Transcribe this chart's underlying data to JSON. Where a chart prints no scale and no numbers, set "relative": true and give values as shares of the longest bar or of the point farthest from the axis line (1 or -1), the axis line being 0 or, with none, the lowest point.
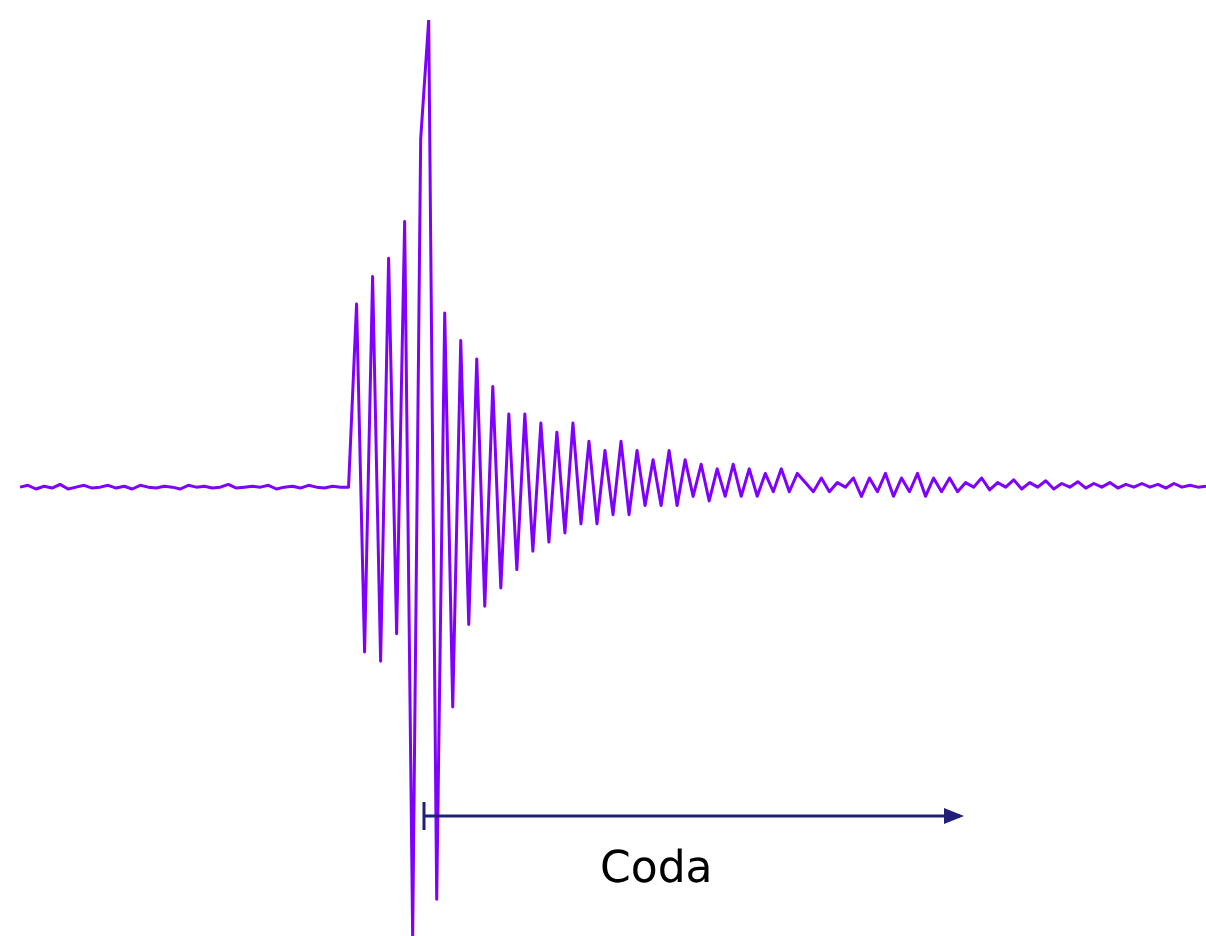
{
  "chart_data": {
    "type": "line",
    "relative": true,
    "marker": "none",
    "grid": false,
    "legend": false,
    "annotations": [
      "Coda"
    ],
    "categories": [
      null,
      null,
      null,
      null,
      null,
      null,
      null,
      null,
      null,
      null,
      null,
      null,
      null,
      null,
      null,
      null,
      null,
      null,
      null,
      null,
      null,
      null,
      null,
      null,
      null,
      null,
      null,
      null,
      null,
      null,
      null,
      null,
      null,
      null,
      null,
      null,
      null,
      null,
      null,
      null,
      null,
      null,
      null,
      null,
      null,
      null,
      null,
      null,
      null,
      null,
      null,
      null,
      null,
      null,
      null,
      null,
      null,
      null,
      null,
      null,
      null,
      null,
      null,
      null,
      null,
      null,
      null,
      null,
      null,
      null,
      null,
      null,
      null,
      null,
      null,
      null,
      null,
      null,
      null,
      null,
      null,
      null,
      null,
      null,
      null,
      null,
      null,
      null,
      null,
      null,
      null,
      null,
      null,
      null,
      null,
      null,
      null,
      null,
      null,
      null,
      null,
      null,
      null,
      null,
      null,
      null,
      null,
      null,
      null,
      null,
      null,
      null,
      null,
      null,
      null,
      null,
      null,
      null,
      null,
      null,
      null,
      null,
      null,
      null,
      null,
      null,
      null,
      null,
      null,
      null,
      null,
      null,
      null,
      null,
      null,
      null,
      null,
      null,
      null,
      null,
      null,
      null,
      null,
      null,
      null,
      null,
      null,
      null,
      null
    ],
    "series": [
      {
        "color": "#7f00ff",
        "values": [
          0.49,
          0.492,
          0.488,
          0.491,
          0.489,
          0.493,
          0.488,
          0.49,
          0.492,
          0.489,
          0.49,
          0.492,
          0.489,
          0.491,
          0.488,
          0.492,
          0.49,
          0.489,
          0.491,
          0.49,
          0.488,
          0.492,
          0.49,
          0.491,
          0.489,
          0.49,
          0.493,
          0.489,
          0.49,
          0.491,
          0.49,
          0.492,
          0.488,
          0.49,
          0.491,
          0.489,
          0.492,
          0.49,
          0.489,
          0.491,
          0.49,
          0.49,
          0.69,
          0.31,
          0.72,
          0.3,
          0.74,
          0.33,
          0.78,
          0.0,
          0.87,
          1.0,
          0.04,
          0.68,
          0.25,
          0.65,
          0.34,
          0.63,
          0.36,
          0.6,
          0.38,
          0.57,
          0.4,
          0.57,
          0.42,
          0.56,
          0.43,
          0.55,
          0.44,
          0.56,
          0.45,
          0.54,
          0.45,
          0.53,
          0.46,
          0.54,
          0.46,
          0.53,
          0.47,
          0.52,
          0.47,
          0.53,
          0.47,
          0.52,
          0.48,
          0.515,
          0.475,
          0.51,
          0.48,
          0.515,
          0.48,
          0.51,
          0.48,
          0.505,
          0.485,
          0.51,
          0.485,
          0.505,
          0.495,
          0.485,
          0.5,
          0.485,
          0.495,
          0.49,
          0.5,
          0.48,
          0.5,
          0.485,
          0.505,
          0.48,
          0.5,
          0.485,
          0.505,
          0.48,
          0.5,
          0.485,
          0.5,
          0.485,
          0.495,
          0.49,
          0.5,
          0.487,
          0.495,
          0.49,
          0.498,
          0.488,
          0.495,
          0.49,
          0.497,
          0.488,
          0.494,
          0.49,
          0.496,
          0.489,
          0.494,
          0.49,
          0.495,
          0.489,
          0.493,
          0.49,
          0.494,
          0.49,
          0.493,
          0.489,
          0.494,
          0.49,
          0.492,
          0.49,
          0.491
        ]
      }
    ]
  }
}
